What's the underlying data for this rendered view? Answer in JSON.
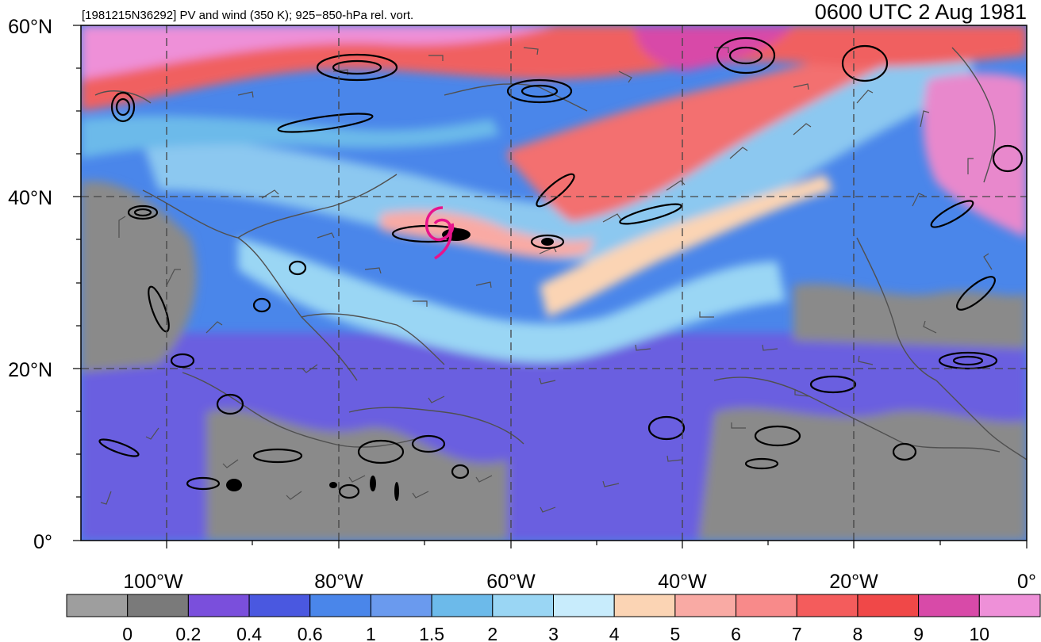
{
  "header": {
    "left_title": "[1981215N36292] PV and wind (350 K); 925−850-hPa rel. vort.",
    "right_title": "0600 UTC 2 Aug 1981"
  },
  "lat_labels": [
    "60°N",
    "40°N",
    "20°N",
    "0°"
  ],
  "lon_labels": [
    "100°W",
    "80°W",
    "60°W",
    "40°W",
    "20°W",
    "0°"
  ],
  "storm_symbol": "tropical-storm-icon",
  "colorbar": {
    "tick_labels": [
      "0",
      "0.2",
      "0.4",
      "0.6",
      "1",
      "1.5",
      "2",
      "3",
      "4",
      "5",
      "6",
      "7",
      "8",
      "9",
      "10"
    ],
    "colors": [
      "#9e9e9e",
      "#7a7a7a",
      "#7a4fdc",
      "#4a58e0",
      "#4a86ea",
      "#6a9aee",
      "#6cbaea",
      "#9ad6f4",
      "#c8ecfc",
      "#fbd4b4",
      "#f9aaa4",
      "#f88a8a",
      "#f45c5c",
      "#f04848",
      "#d84aa8",
      "#ee90d8"
    ]
  },
  "colors": {
    "storm_symbol": "#e8148c",
    "contour": "#000000",
    "barb": "#505050"
  }
}
